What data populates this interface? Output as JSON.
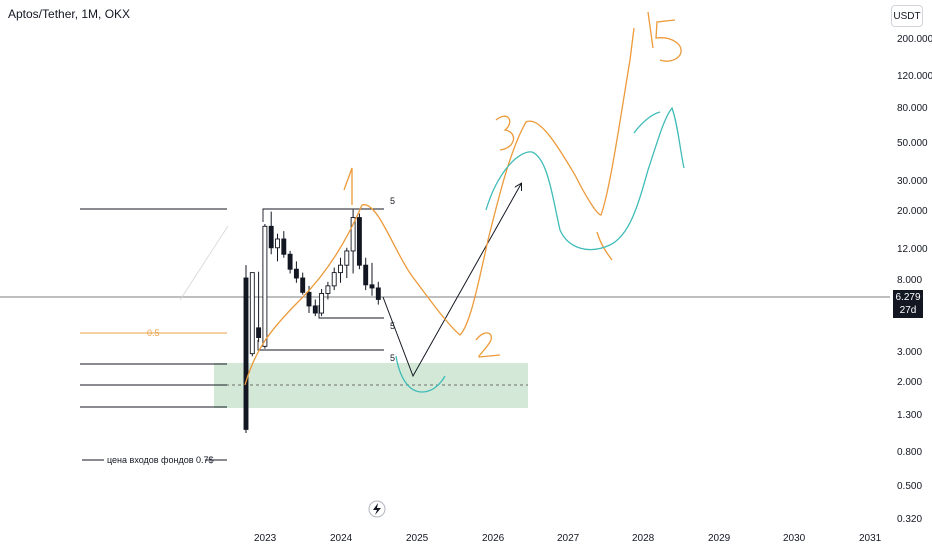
{
  "header": {
    "title": "Aptos/Tether, 1M, OKX",
    "currency_button": "USDT"
  },
  "price_badge": {
    "price": "6.279",
    "countdown": "27d 3h"
  },
  "flash_icon": "lightning-icon",
  "chart_data": {
    "type": "candlestick",
    "title": "Aptos/Tether, 1M, OKX",
    "y_scale": "log",
    "y_ticks": [
      "200.000",
      "120.000",
      "80.000",
      "50.000",
      "30.000",
      "20.000",
      "12.000",
      "8.000",
      "3.000",
      "2.000",
      "1.300",
      "0.800",
      "0.500",
      "0.320"
    ],
    "x_ticks": [
      "2023",
      "2024",
      "2025",
      "2026",
      "2027",
      "2028",
      "2029",
      "2030",
      "2031"
    ],
    "current_price": 6.279,
    "candles": [
      {
        "o": 8.0,
        "h": 9.5,
        "l": 1.0,
        "c": 1.05
      },
      {
        "o": 2.9,
        "h": 8.6,
        "l": 2.8,
        "c": 8.6
      },
      {
        "o": 4.1,
        "h": 8.7,
        "l": 3.4,
        "c": 3.6
      },
      {
        "o": 3.2,
        "h": 16.5,
        "l": 3.1,
        "c": 16.0
      },
      {
        "o": 16.0,
        "h": 19.5,
        "l": 11.0,
        "c": 12.0
      },
      {
        "o": 12.0,
        "h": 14.5,
        "l": 10.0,
        "c": 13.5
      },
      {
        "o": 13.5,
        "h": 15.0,
        "l": 10.5,
        "c": 11.0
      },
      {
        "o": 11.0,
        "h": 11.5,
        "l": 8.5,
        "c": 9.0
      },
      {
        "o": 9.0,
        "h": 10.0,
        "l": 7.5,
        "c": 8.0
      },
      {
        "o": 8.0,
        "h": 8.6,
        "l": 6.4,
        "c": 6.6
      },
      {
        "o": 6.6,
        "h": 7.2,
        "l": 5.0,
        "c": 5.5
      },
      {
        "o": 5.5,
        "h": 6.0,
        "l": 4.8,
        "c": 5.0
      },
      {
        "o": 5.0,
        "h": 6.9,
        "l": 4.8,
        "c": 6.5
      },
      {
        "o": 6.5,
        "h": 7.6,
        "l": 6.0,
        "c": 7.2
      },
      {
        "o": 7.2,
        "h": 9.2,
        "l": 6.8,
        "c": 8.6
      },
      {
        "o": 8.6,
        "h": 10.5,
        "l": 7.5,
        "c": 9.5
      },
      {
        "o": 9.5,
        "h": 12.0,
        "l": 8.0,
        "c": 11.5
      },
      {
        "o": 11.5,
        "h": 20.0,
        "l": 8.5,
        "c": 18.0
      },
      {
        "o": 18.0,
        "h": 19.0,
        "l": 9.0,
        "c": 9.5
      },
      {
        "o": 9.5,
        "h": 10.5,
        "l": 6.8,
        "c": 7.3
      },
      {
        "o": 7.3,
        "h": 9.8,
        "l": 6.3,
        "c": 7.0
      },
      {
        "o": 7.0,
        "h": 7.6,
        "l": 5.6,
        "c": 6.0
      }
    ],
    "annotations": {
      "fib_label": "0.5",
      "funds_label": "цена входов фондов 0.7$",
      "wave_numbers": [
        "1",
        "2",
        "3",
        "5"
      ],
      "small_labels": [
        "5",
        "5",
        "5"
      ]
    }
  }
}
